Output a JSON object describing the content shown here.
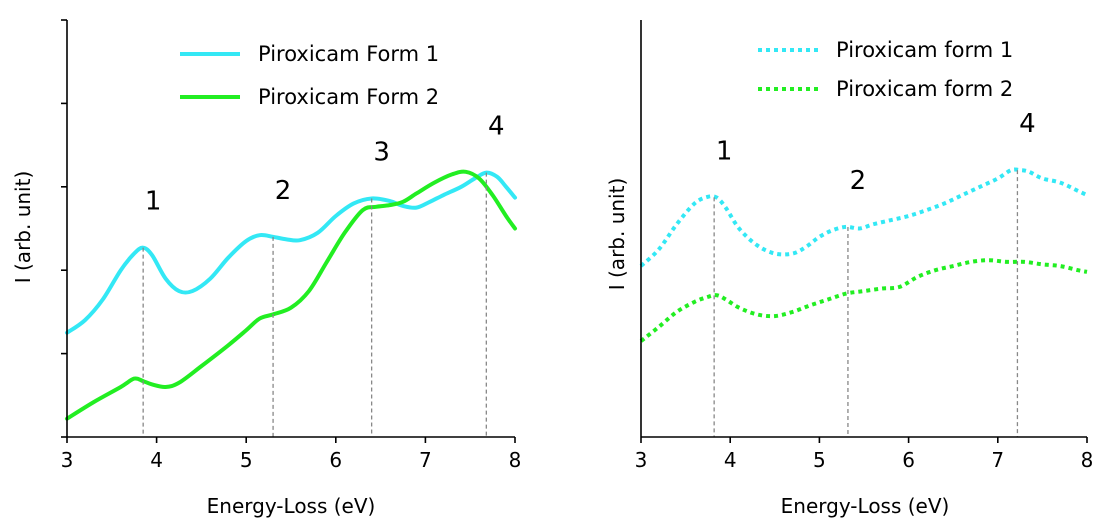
{
  "chart_data": [
    {
      "type": "line",
      "xlabel": "Energy-Loss (eV)",
      "ylabel": "I (arb. unit)",
      "xlim": [
        3,
        8
      ],
      "ylim": [
        0,
        5
      ],
      "x_ticks": [
        "3",
        "4",
        "5",
        "6",
        "7",
        "8"
      ],
      "y_tick_marks": 6,
      "y_tick_labels": false,
      "legend": "top-right",
      "line_style": "solid",
      "series": [
        {
          "name": "Piroxicam Form 1",
          "color": "#33e8f5",
          "x": [
            3.0,
            3.2,
            3.4,
            3.6,
            3.75,
            3.85,
            3.95,
            4.1,
            4.25,
            4.4,
            4.6,
            4.8,
            5.0,
            5.15,
            5.3,
            5.45,
            5.6,
            5.8,
            6.0,
            6.2,
            6.4,
            6.6,
            6.75,
            6.9,
            7.05,
            7.2,
            7.4,
            7.55,
            7.68,
            7.8,
            7.9,
            8.0
          ],
          "y": [
            1.25,
            1.4,
            1.65,
            2.0,
            2.2,
            2.27,
            2.18,
            1.9,
            1.75,
            1.75,
            1.9,
            2.15,
            2.35,
            2.42,
            2.4,
            2.37,
            2.36,
            2.45,
            2.65,
            2.8,
            2.86,
            2.83,
            2.77,
            2.75,
            2.82,
            2.9,
            3.0,
            3.1,
            3.17,
            3.12,
            3.0,
            2.87
          ]
        },
        {
          "name": "Piroxicam Form 2",
          "color": "#22ee22",
          "x": [
            3.0,
            3.3,
            3.6,
            3.75,
            3.85,
            3.95,
            4.1,
            4.25,
            4.5,
            4.8,
            5.0,
            5.15,
            5.3,
            5.5,
            5.7,
            5.9,
            6.1,
            6.3,
            6.45,
            6.6,
            6.75,
            6.9,
            7.1,
            7.3,
            7.45,
            7.6,
            7.75,
            7.9,
            8.0
          ],
          "y": [
            0.22,
            0.42,
            0.6,
            0.7,
            0.67,
            0.63,
            0.6,
            0.65,
            0.85,
            1.1,
            1.28,
            1.42,
            1.47,
            1.55,
            1.75,
            2.1,
            2.45,
            2.72,
            2.76,
            2.78,
            2.82,
            2.92,
            3.05,
            3.15,
            3.18,
            3.1,
            2.9,
            2.65,
            2.5
          ]
        }
      ],
      "peak_markers": [
        {
          "label": "1",
          "x": 3.85
        },
        {
          "label": "2",
          "x": 5.3
        },
        {
          "label": "3",
          "x": 6.4
        },
        {
          "label": "4",
          "x": 7.68
        }
      ]
    },
    {
      "type": "line",
      "xlabel": "Energy-Loss (eV)",
      "ylabel": "I (arb. unit)",
      "xlim": [
        3,
        8
      ],
      "ylim": [
        0,
        5
      ],
      "x_ticks": [
        "3",
        "4",
        "5",
        "6",
        "7",
        "8"
      ],
      "y_tick_marks": 0,
      "y_tick_labels": false,
      "legend": "top-right",
      "line_style": "dotted",
      "series": [
        {
          "name": "Piroxicam form 1",
          "color": "#33e8f5",
          "x": [
            3.0,
            3.2,
            3.4,
            3.6,
            3.75,
            3.85,
            3.95,
            4.1,
            4.3,
            4.5,
            4.7,
            4.85,
            5.0,
            5.15,
            5.3,
            5.45,
            5.6,
            5.8,
            6.0,
            6.2,
            6.4,
            6.6,
            6.8,
            7.0,
            7.15,
            7.25,
            7.35,
            7.5,
            7.7,
            7.9,
            8.0
          ],
          "y": [
            2.05,
            2.25,
            2.55,
            2.8,
            2.88,
            2.87,
            2.75,
            2.5,
            2.3,
            2.2,
            2.2,
            2.28,
            2.4,
            2.48,
            2.52,
            2.5,
            2.55,
            2.6,
            2.65,
            2.72,
            2.8,
            2.9,
            3.0,
            3.1,
            3.2,
            3.2,
            3.18,
            3.1,
            3.05,
            2.95,
            2.9
          ]
        },
        {
          "name": "Piroxicam form 2",
          "color": "#22ee22",
          "x": [
            3.0,
            3.2,
            3.4,
            3.6,
            3.75,
            3.85,
            3.95,
            4.1,
            4.3,
            4.5,
            4.7,
            4.9,
            5.1,
            5.3,
            5.5,
            5.7,
            5.9,
            6.1,
            6.3,
            6.5,
            6.7,
            6.9,
            7.1,
            7.3,
            7.5,
            7.7,
            7.9,
            8.0
          ],
          "y": [
            1.15,
            1.32,
            1.5,
            1.62,
            1.68,
            1.7,
            1.65,
            1.55,
            1.47,
            1.45,
            1.5,
            1.58,
            1.65,
            1.72,
            1.75,
            1.78,
            1.8,
            1.92,
            2.0,
            2.05,
            2.1,
            2.12,
            2.1,
            2.1,
            2.07,
            2.05,
            2.0,
            1.98
          ]
        }
      ],
      "peak_markers": [
        {
          "label": "1",
          "x": 3.82
        },
        {
          "label": "2",
          "x": 5.32
        },
        {
          "label": "4",
          "x": 7.22
        }
      ]
    }
  ]
}
